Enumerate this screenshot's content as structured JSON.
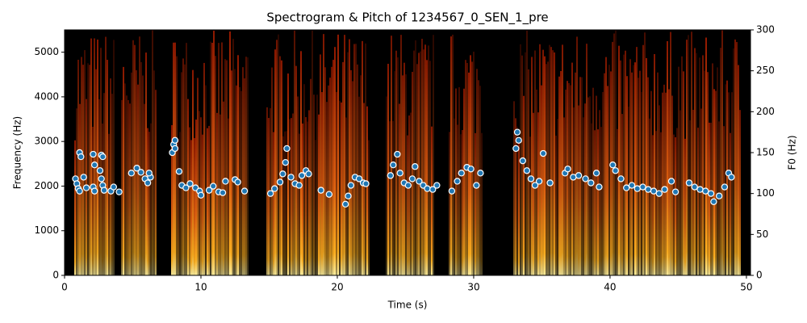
{
  "chart_data": {
    "type": "scatter",
    "title": "Spectrogram & Pitch of 1234567_0_SEN_1_pre",
    "x_label": "Time (s)",
    "y_label": "Frequency (Hz)",
    "y2_label": "F0 (Hz)",
    "xlim": [
      0,
      50.3
    ],
    "xticks": [
      0,
      10,
      20,
      30,
      40,
      50
    ],
    "ylim": [
      0,
      5500
    ],
    "yticks": [
      0,
      1000,
      2000,
      3000,
      4000,
      5000
    ],
    "y2lim": [
      0,
      300
    ],
    "y2ticks": [
      0,
      50,
      100,
      150,
      200,
      250,
      300
    ],
    "series": [
      {
        "name": "F0",
        "color": "#1f77b4",
        "axis": "y2",
        "x": [
          0.8,
          0.9,
          1.0,
          1.1,
          1.1,
          1.2,
          1.4,
          1.6,
          2.1,
          2.2,
          2.1,
          2.2,
          2.7,
          2.8,
          2.6,
          2.7,
          2.8,
          2.9,
          3.4,
          3.6,
          4.0,
          4.9,
          5.3,
          5.6,
          5.9,
          6.1,
          6.3,
          6.2,
          7.9,
          8.0,
          8.1,
          8.1,
          8.4,
          8.6,
          8.9,
          9.2,
          9.6,
          9.9,
          10.0,
          10.6,
          10.9,
          11.3,
          11.6,
          11.8,
          12.5,
          12.7,
          13.2,
          15.1,
          15.4,
          15.8,
          16.0,
          16.2,
          16.3,
          16.6,
          16.9,
          17.2,
          17.4,
          17.7,
          17.9,
          18.8,
          19.4,
          20.6,
          20.8,
          21.0,
          21.3,
          21.6,
          21.9,
          22.1,
          23.9,
          24.1,
          24.4,
          24.6,
          24.9,
          25.2,
          25.5,
          25.7,
          26.0,
          26.3,
          26.6,
          27.0,
          27.3,
          28.4,
          28.8,
          29.1,
          29.5,
          29.8,
          30.2,
          30.5,
          33.1,
          33.3,
          33.2,
          33.6,
          33.9,
          34.2,
          34.5,
          34.8,
          35.1,
          35.6,
          36.7,
          36.9,
          37.3,
          37.7,
          38.2,
          38.6,
          39.0,
          39.2,
          40.2,
          40.4,
          40.8,
          41.2,
          41.6,
          42.0,
          42.4,
          42.8,
          43.2,
          43.6,
          44.0,
          44.5,
          44.8,
          45.8,
          46.2,
          46.6,
          47.0,
          47.4,
          47.6,
          48.0,
          48.4,
          48.7,
          48.9
        ],
        "values": [
          118,
          112,
          106,
          103,
          150,
          145,
          120,
          107,
          148,
          135,
          108,
          103,
          147,
          145,
          128,
          118,
          110,
          104,
          103,
          108,
          102,
          125,
          131,
          126,
          118,
          113,
          120,
          125,
          150,
          160,
          165,
          155,
          127,
          110,
          107,
          112,
          107,
          103,
          98,
          104,
          109,
          102,
          101,
          115,
          117,
          114,
          103,
          100,
          106,
          114,
          124,
          138,
          155,
          120,
          112,
          110,
          122,
          128,
          124,
          104,
          99,
          87,
          97,
          110,
          120,
          118,
          113,
          112,
          122,
          135,
          148,
          125,
          113,
          110,
          118,
          133,
          115,
          110,
          106,
          105,
          110,
          103,
          115,
          125,
          132,
          130,
          110,
          125,
          155,
          165,
          175,
          140,
          128,
          118,
          110,
          115,
          149,
          113,
          125,
          130,
          120,
          122,
          118,
          113,
          125,
          108,
          135,
          128,
          118,
          107,
          110,
          106,
          108,
          105,
          103,
          100,
          105,
          115,
          102,
          113,
          108,
          105,
          103,
          100,
          90,
          97,
          108,
          125,
          120
        ]
      }
    ]
  }
}
